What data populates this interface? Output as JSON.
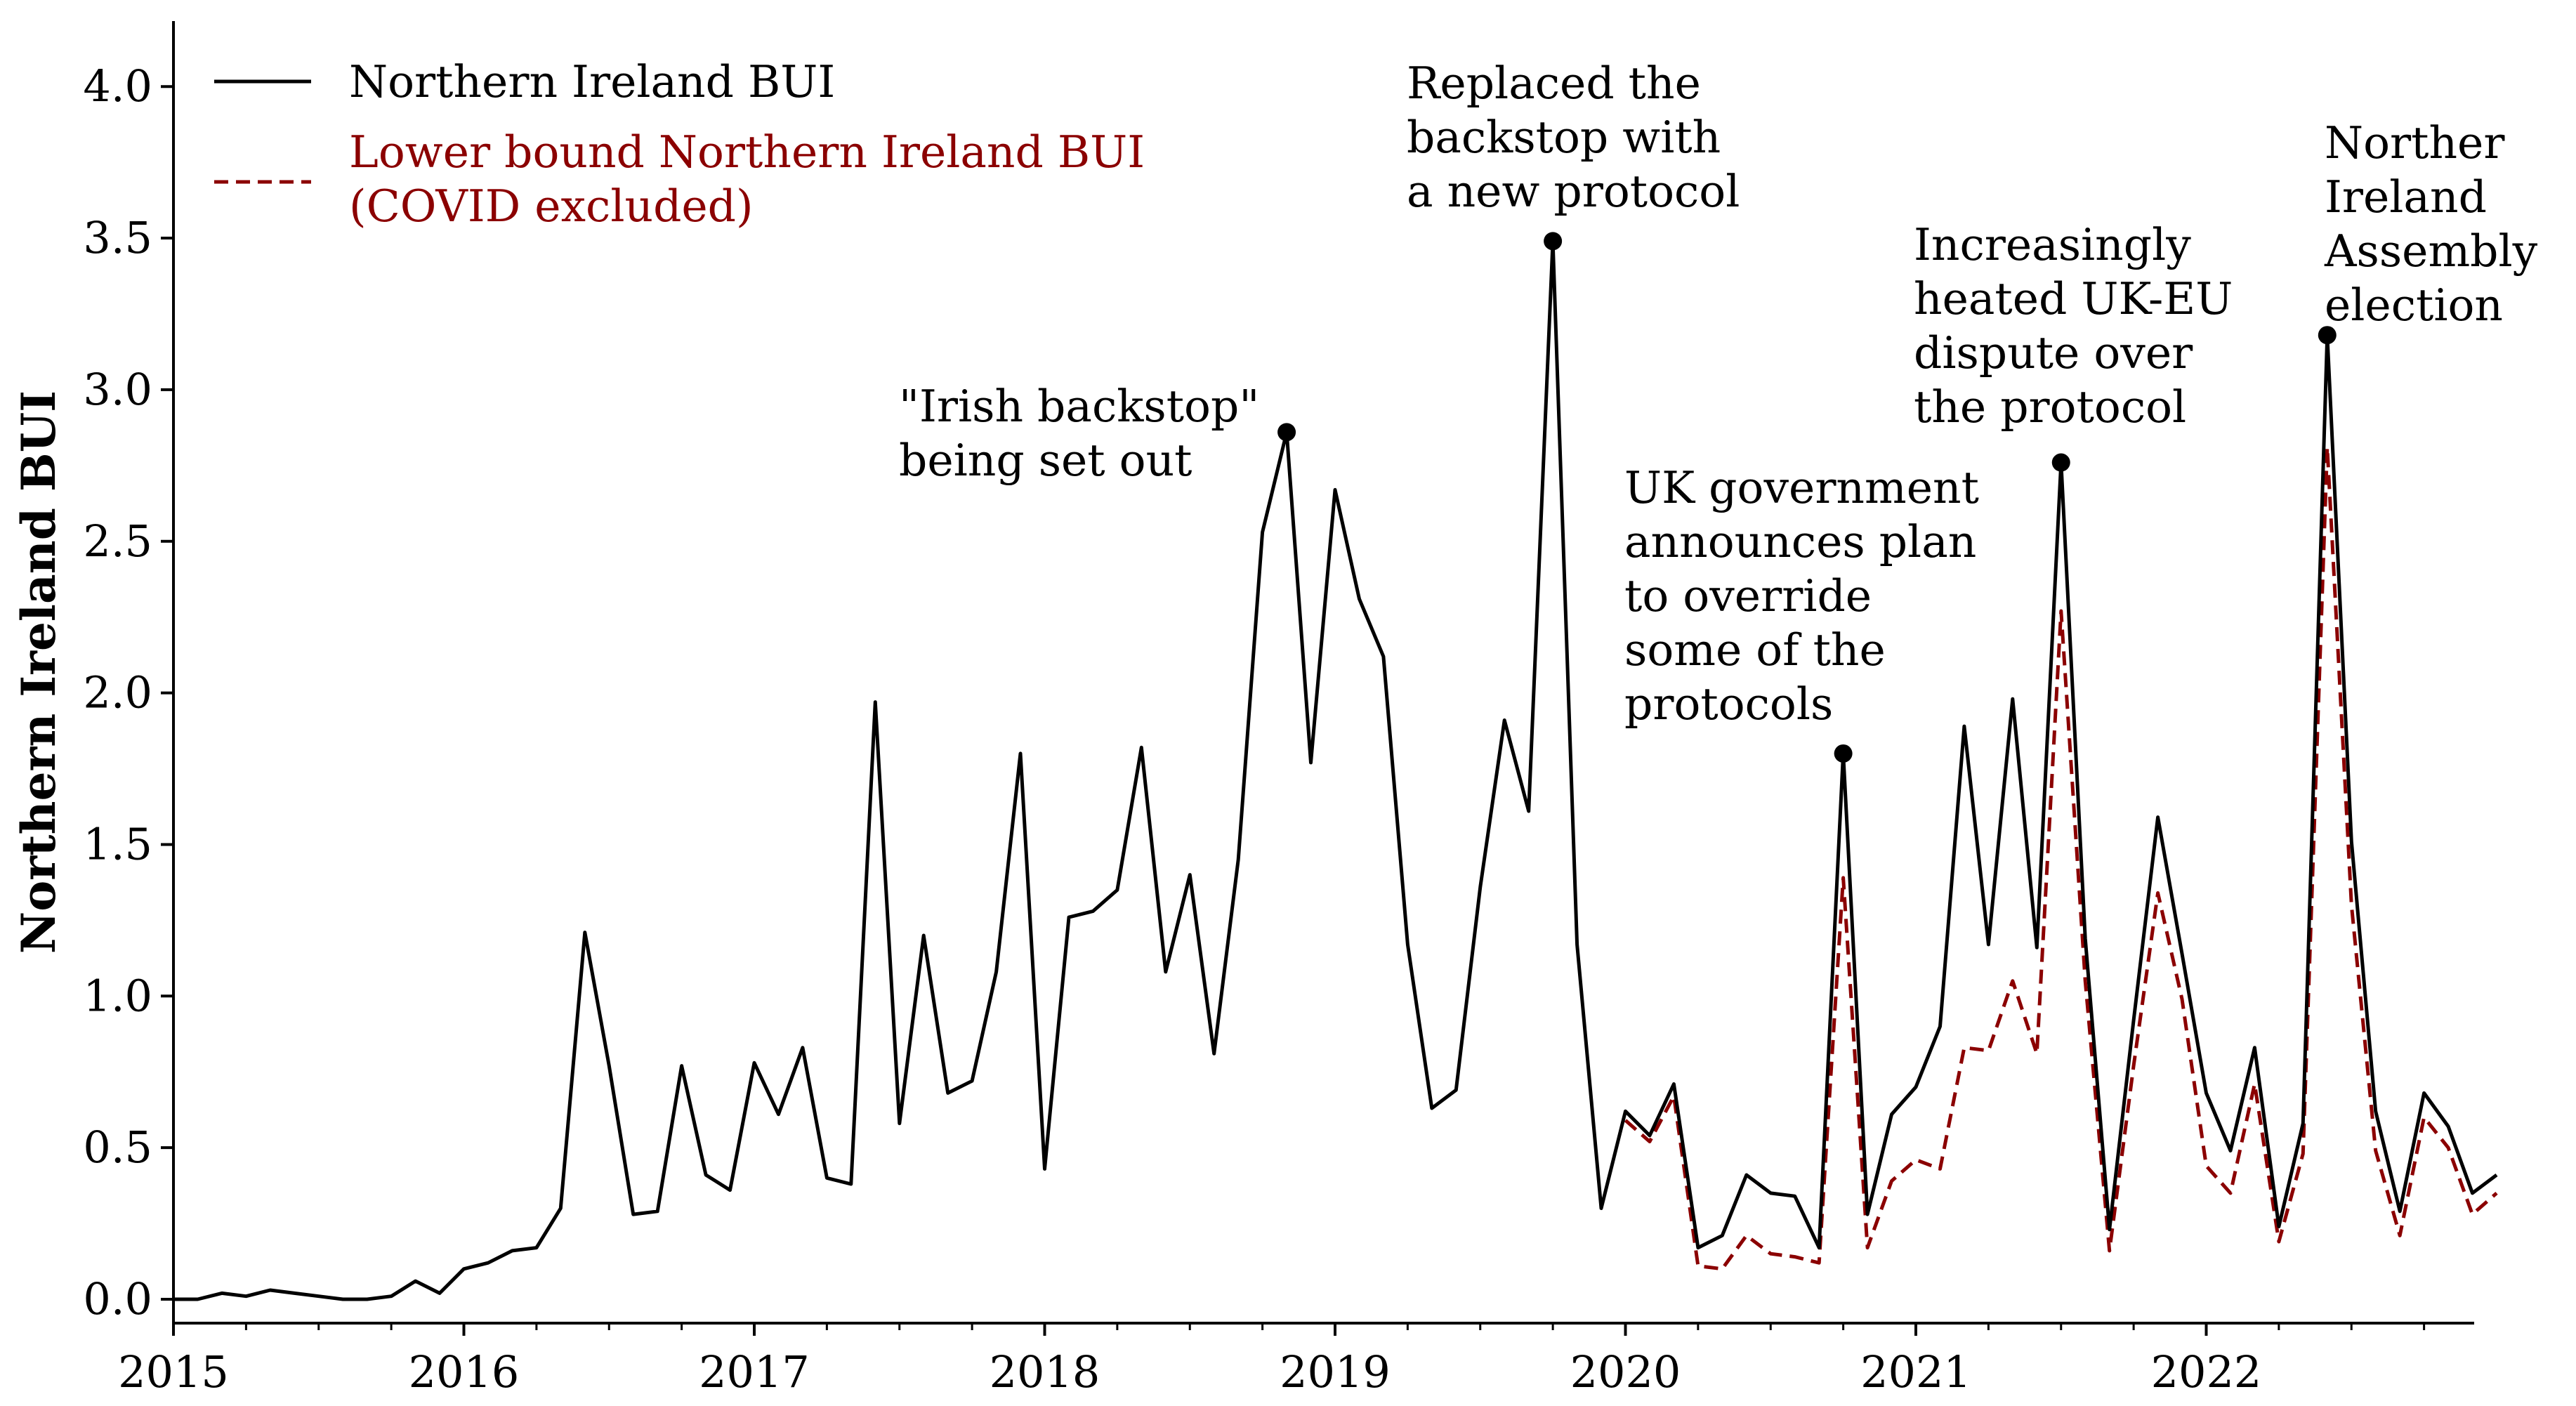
{
  "chart_data": {
    "type": "line",
    "ylabel": "Northern Ireland BUI",
    "xlabel": "",
    "ylim": [
      -0.1,
      4.2
    ],
    "yticks": [
      0.0,
      0.5,
      1.0,
      1.5,
      2.0,
      2.5,
      3.0,
      3.5,
      4.0
    ],
    "ytick_labels": [
      "0.0",
      "0.5",
      "1.0",
      "1.5",
      "2.0",
      "2.5",
      "3.0",
      "3.5",
      "4.0"
    ],
    "x_range_years": [
      2015.0,
      2022.917
    ],
    "xtick_labels": [
      "2015",
      "2016",
      "2017",
      "2018",
      "2019",
      "2020",
      "2021",
      "2022"
    ],
    "x_start": "2015-01",
    "x_frequency": "monthly",
    "grid": false,
    "legend_position": "top-left",
    "colors": {
      "main": "#000000",
      "lower": "#8b0000"
    },
    "series": [
      {
        "name": "Northern Ireland BUI",
        "style": "solid",
        "values": [
          0.0,
          0.0,
          0.02,
          0.01,
          0.03,
          0.02,
          0.01,
          0.0,
          0.0,
          0.01,
          0.06,
          0.02,
          0.1,
          0.12,
          0.16,
          0.17,
          0.3,
          1.21,
          0.77,
          0.28,
          0.29,
          0.77,
          0.41,
          0.36,
          0.78,
          0.61,
          0.83,
          0.4,
          0.38,
          1.97,
          0.58,
          1.2,
          0.68,
          0.72,
          1.08,
          1.8,
          0.43,
          1.26,
          1.28,
          1.35,
          1.82,
          1.08,
          1.4,
          0.81,
          1.45,
          2.53,
          2.86,
          1.77,
          2.67,
          2.31,
          2.12,
          1.17,
          0.63,
          0.69,
          1.36,
          1.91,
          1.61,
          3.49,
          1.17,
          0.3,
          0.62,
          0.54,
          0.71,
          0.17,
          0.21,
          0.41,
          0.35,
          0.34,
          0.17,
          1.8,
          0.28,
          0.61,
          0.7,
          0.9,
          1.89,
          1.17,
          1.98,
          1.16,
          2.76,
          1.19,
          0.23,
          0.92,
          1.59,
          1.14,
          0.68,
          0.49,
          0.83,
          0.24,
          0.58,
          3.18,
          1.51,
          0.62,
          0.29,
          0.68,
          0.57,
          0.35,
          0.41
        ]
      },
      {
        "name": "Lower bound Northern Ireland BUI\n(COVID excluded)",
        "style": "dashed",
        "x_offset_months": 60,
        "values": [
          0.59,
          0.52,
          0.67,
          0.11,
          0.1,
          0.21,
          0.15,
          0.14,
          0.12,
          1.39,
          0.17,
          0.39,
          0.46,
          0.43,
          0.83,
          0.82,
          1.05,
          0.81,
          2.27,
          1.05,
          0.16,
          0.77,
          1.34,
          0.99,
          0.44,
          0.35,
          0.71,
          0.19,
          0.48,
          2.81,
          1.3,
          0.49,
          0.21,
          0.6,
          0.5,
          0.28,
          0.35
        ]
      }
    ],
    "annotations": [
      {
        "index": 46,
        "text": "\"Irish backstop\"\nbeing set out"
      },
      {
        "index": 57,
        "text": "Replaced the\nbackstop with\na new protocol"
      },
      {
        "index": 69,
        "text": "UK government\nannounces plan\nto override\nsome of the\nprotocols"
      },
      {
        "index": 78,
        "text": "Increasingly\nheated UK-EU\ndispute over\nthe protocol"
      },
      {
        "index": 89,
        "text": "Norther\nIreland\nAssembly\nelection"
      }
    ]
  }
}
